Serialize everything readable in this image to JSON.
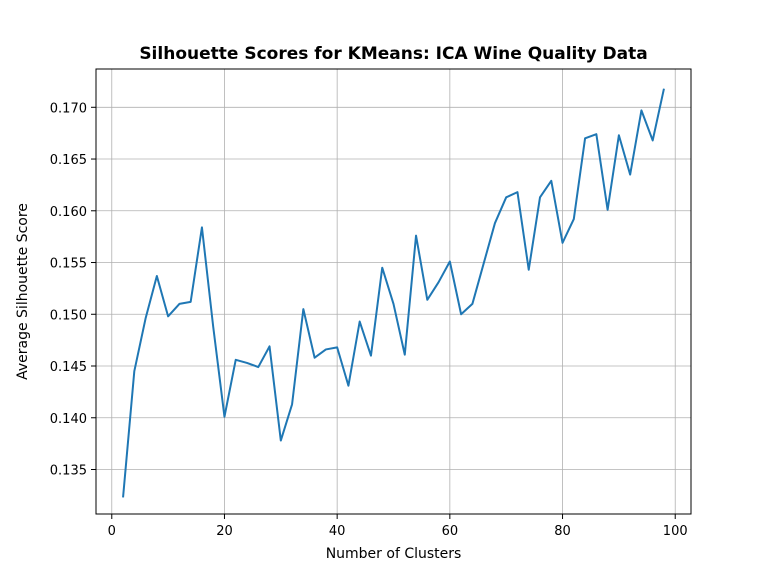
{
  "chart_data": {
    "type": "line",
    "title": "Silhouette Scores for KMeans: ICA Wine Quality Data",
    "xlabel": "Number of Clusters",
    "ylabel": "Average Silhouette Score",
    "xlim": [
      -2.8,
      102.8
    ],
    "ylim": [
      0.1307,
      0.1737
    ],
    "xticks": [
      0,
      20,
      40,
      60,
      80,
      100
    ],
    "yticks": [
      0.135,
      0.14,
      0.145,
      0.15,
      0.155,
      0.16,
      0.165,
      0.17
    ],
    "xtick_labels": [
      "0",
      "20",
      "40",
      "60",
      "80",
      "100"
    ],
    "ytick_labels": [
      "0.135",
      "0.140",
      "0.145",
      "0.150",
      "0.155",
      "0.160",
      "0.165",
      "0.170"
    ],
    "grid": true,
    "line_color": "#1f77b4",
    "series": [
      {
        "x": [
          2,
          4,
          6,
          8,
          10,
          12,
          14,
          16,
          18,
          20,
          22,
          24,
          26,
          28,
          30,
          32,
          34,
          36,
          38,
          40,
          42,
          44,
          46,
          48,
          50,
          52,
          54,
          56,
          58,
          60,
          62,
          64,
          66,
          68,
          70,
          72,
          74,
          76,
          78,
          80,
          82,
          84,
          86,
          88,
          90,
          92,
          94,
          96,
          98
        ],
        "values": [
          0.1323,
          0.1445,
          0.1496,
          0.1537,
          0.1498,
          0.151,
          0.1512,
          0.1584,
          0.1488,
          0.1401,
          0.1456,
          0.1453,
          0.1449,
          0.1469,
          0.1378,
          0.1413,
          0.1505,
          0.1458,
          0.1466,
          0.1468,
          0.1431,
          0.1493,
          0.146,
          0.1545,
          0.151,
          0.1461,
          0.1576,
          0.1514,
          0.1531,
          0.1551,
          0.15,
          0.151,
          0.1549,
          0.1588,
          0.1613,
          0.1618,
          0.1543,
          0.1613,
          0.1629,
          0.1569,
          0.1592,
          0.167,
          0.1674,
          0.1601,
          0.1673,
          0.1635,
          0.1697,
          0.1668,
          0.1718
        ]
      }
    ]
  }
}
